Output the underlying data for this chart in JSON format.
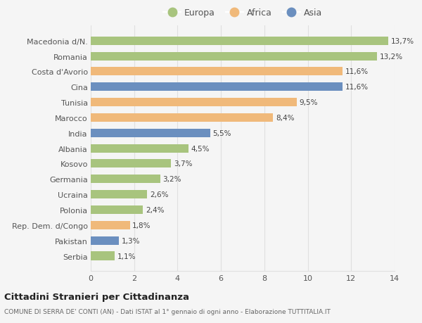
{
  "categories": [
    "Macedonia d/N.",
    "Romania",
    "Costa d'Avorio",
    "Cina",
    "Tunisia",
    "Marocco",
    "India",
    "Albania",
    "Kosovo",
    "Germania",
    "Ucraina",
    "Polonia",
    "Rep. Dem. d/Congo",
    "Pakistan",
    "Serbia"
  ],
  "values": [
    13.7,
    13.2,
    11.6,
    11.6,
    9.5,
    8.4,
    5.5,
    4.5,
    3.7,
    3.2,
    2.6,
    2.4,
    1.8,
    1.3,
    1.1
  ],
  "continents": [
    "Europa",
    "Europa",
    "Africa",
    "Asia",
    "Africa",
    "Africa",
    "Asia",
    "Europa",
    "Europa",
    "Europa",
    "Europa",
    "Europa",
    "Africa",
    "Asia",
    "Europa"
  ],
  "colors": {
    "Europa": "#a8c47e",
    "Africa": "#f0b97a",
    "Asia": "#6b8fbf"
  },
  "legend_labels": [
    "Europa",
    "Africa",
    "Asia"
  ],
  "xlim": [
    0,
    14
  ],
  "xticks": [
    0,
    2,
    4,
    6,
    8,
    10,
    12,
    14
  ],
  "title": "Cittadini Stranieri per Cittadinanza",
  "subtitle": "COMUNE DI SERRA DE' CONTI (AN) - Dati ISTAT al 1° gennaio di ogni anno - Elaborazione TUTTITALIA.IT",
  "bar_height": 0.55,
  "background_color": "#f5f5f5",
  "grid_color": "#e0e0e0"
}
